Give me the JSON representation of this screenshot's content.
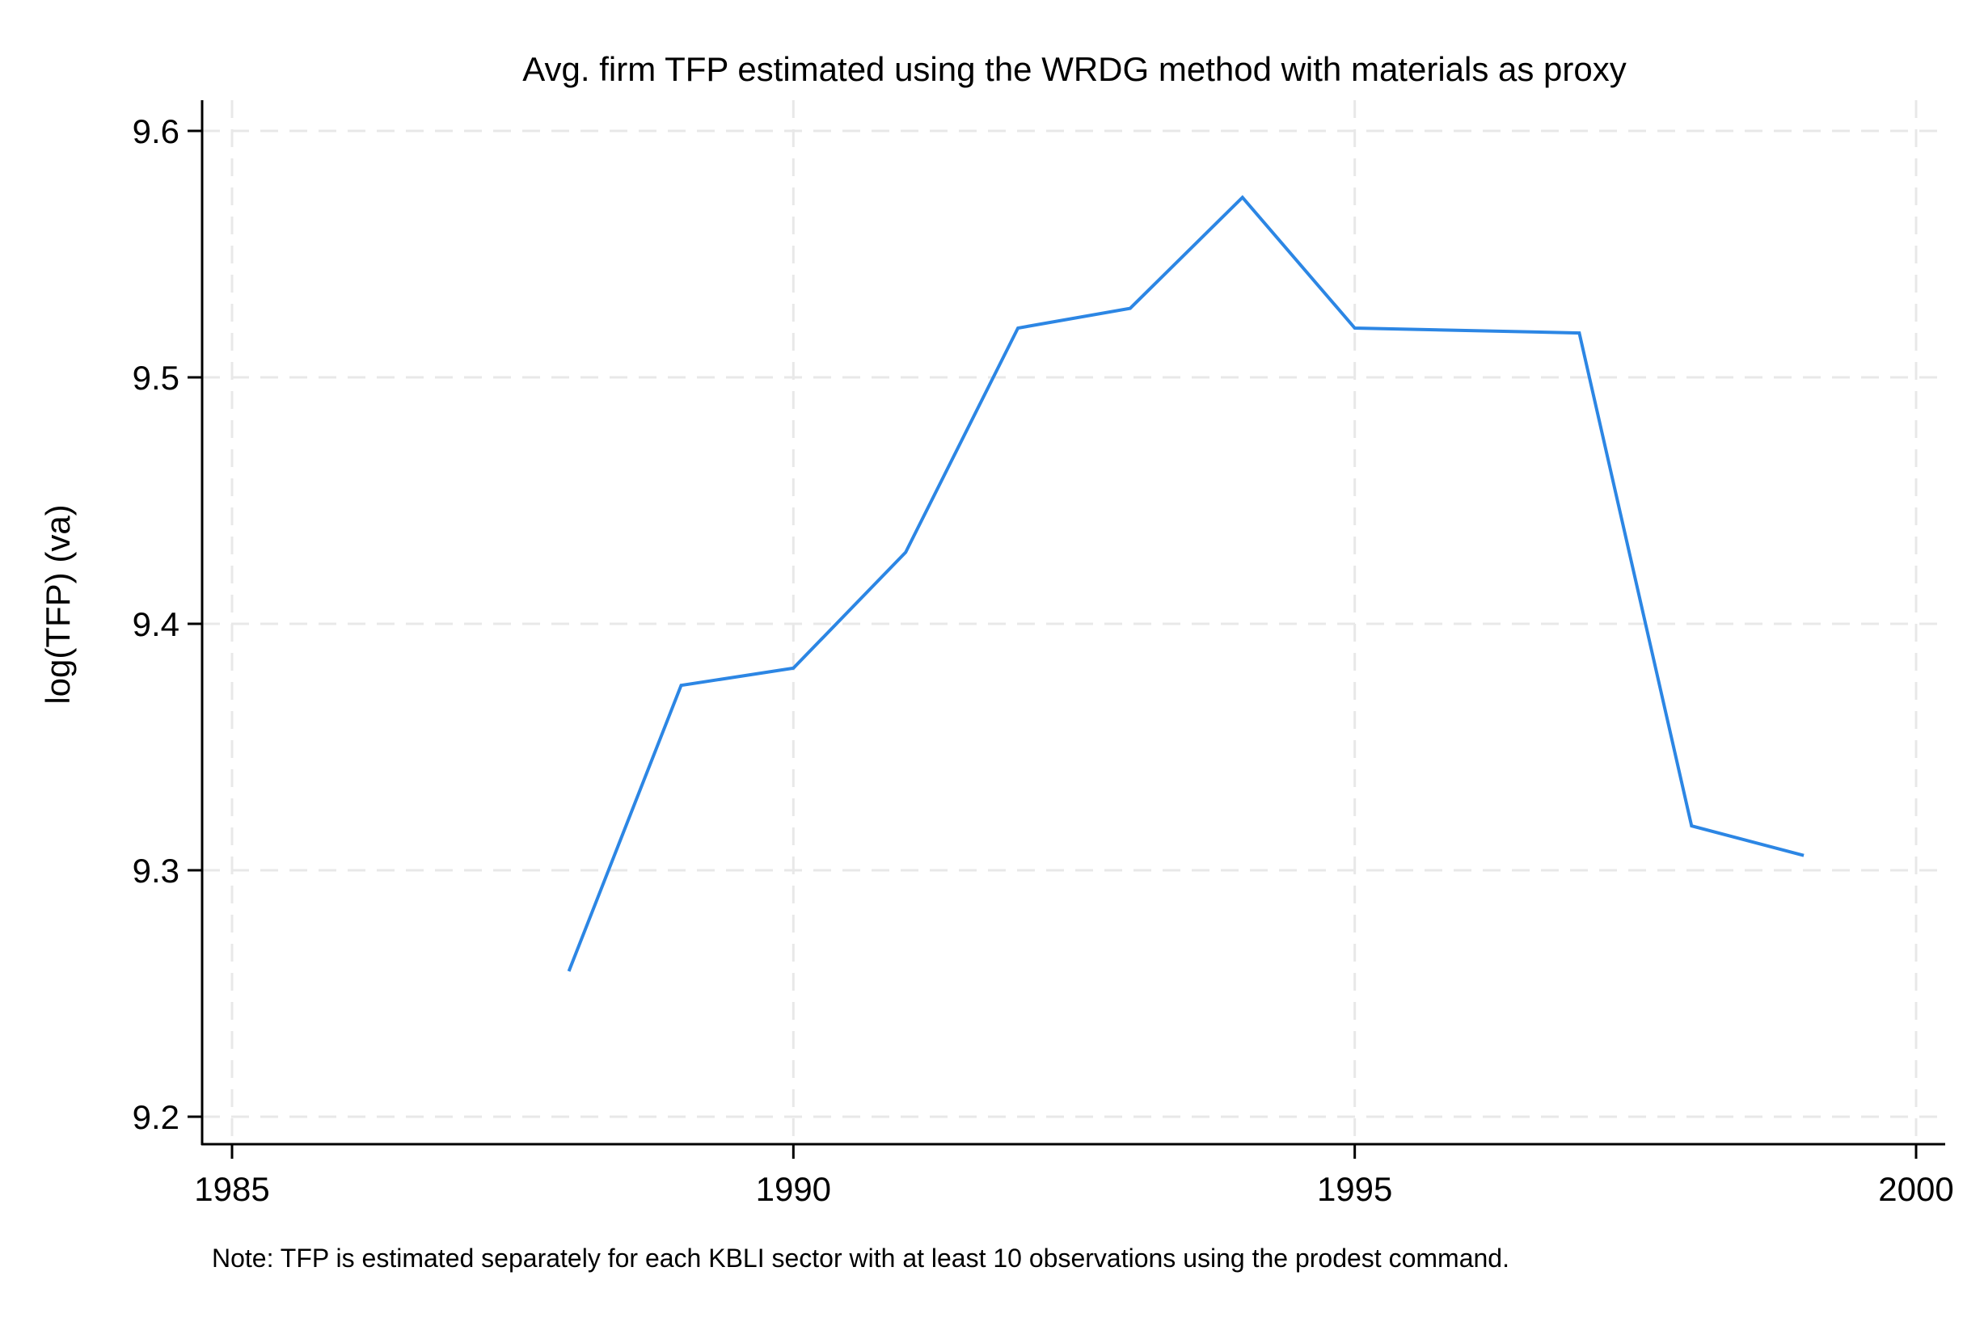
{
  "chart_data": {
    "type": "line",
    "title": "Avg. firm TFP estimated using the WRDG method with materials as proxy",
    "xlabel": "",
    "ylabel": "log(TFP) (va)",
    "note": "Note: TFP is estimated separately for each KBLI sector with at least 10 observations using the prodest command.",
    "xlim": [
      1985,
      2000
    ],
    "ylim": [
      9.2,
      9.6
    ],
    "x_ticks": [
      1985,
      1990,
      1995,
      2000
    ],
    "y_ticks": [
      9.2,
      9.3,
      9.4,
      9.5,
      9.6
    ],
    "x_tick_labels": [
      "1985",
      "1990",
      "1995",
      "2000"
    ],
    "y_tick_labels": [
      "9.2",
      "9.3",
      "9.4",
      "9.5",
      "9.6"
    ],
    "grid": true,
    "legend": "none",
    "line_color": "#2c86e4",
    "grid_color": "#e8e8e8",
    "series": [
      {
        "x": [
          1988,
          1989,
          1990,
          1991,
          1992,
          1993,
          1994,
          1995,
          1997,
          1998,
          1999
        ],
        "y": [
          9.259,
          9.375,
          9.382,
          9.429,
          9.52,
          9.528,
          9.573,
          9.52,
          9.518,
          9.318,
          9.306
        ]
      }
    ]
  }
}
